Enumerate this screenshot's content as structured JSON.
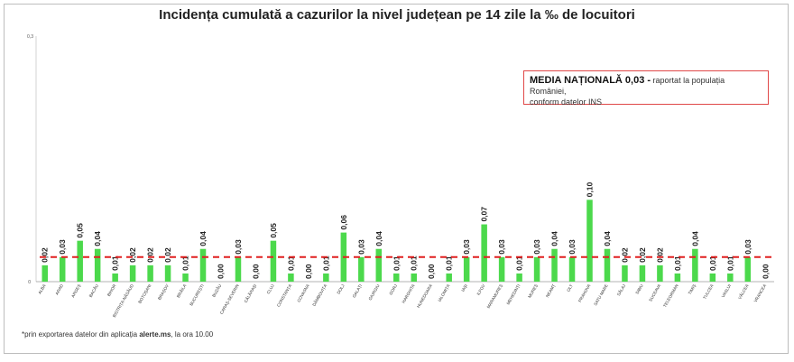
{
  "chart_data": {
    "type": "bar",
    "title": "Incidența cumulată a cazurilor la nivel județean pe 14 zile la ‰ de locuitori",
    "ylim": [
      0,
      0.3
    ],
    "y_ticks": [
      "0",
      "0,3"
    ],
    "grid": false,
    "reference_line": {
      "value": 0.03,
      "color": "#e02020",
      "style": "dashed"
    },
    "bar_color": "#4cd94c",
    "categories": [
      "ALBA",
      "ARAD",
      "ARGEȘ",
      "BACĂU",
      "BIHOR",
      "BISTRIȚA-NĂSĂUD",
      "BOTOȘANI",
      "BRAȘOV",
      "BRĂILA",
      "BUCUREȘTI",
      "BUZĂU",
      "CARAȘ-SEVERIN",
      "CĂLĂRAȘI",
      "CLUJ",
      "CONSTANȚA",
      "COVASNA",
      "DÂMBOVIȚA",
      "DOLJ",
      "GALAȚI",
      "GIURGIU",
      "GORJ",
      "HARGHITA",
      "HUNEDOARA",
      "IALOMIȚA",
      "IAȘI",
      "ILFOV",
      "MARAMUREȘ",
      "MEHEDINȚI",
      "MUREȘ",
      "NEAMȚ",
      "OLT",
      "PRAHOVA",
      "SATU MARE",
      "SĂLAJ",
      "SIBIU",
      "SUCEAVA",
      "TELEORMAN",
      "TIMIȘ",
      "TULCEA",
      "VASLUI",
      "VÂLCEA",
      "VRANCEA"
    ],
    "values": [
      0.02,
      0.03,
      0.05,
      0.04,
      0.01,
      0.02,
      0.02,
      0.02,
      0.01,
      0.04,
      0.0,
      0.03,
      0.0,
      0.05,
      0.01,
      0.0,
      0.01,
      0.06,
      0.03,
      0.04,
      0.01,
      0.01,
      0.0,
      0.01,
      0.03,
      0.07,
      0.03,
      0.01,
      0.03,
      0.04,
      0.03,
      0.1,
      0.04,
      0.02,
      0.02,
      0.02,
      0.01,
      0.04,
      0.01,
      0.01,
      0.03,
      0.0
    ],
    "labels": [
      "0,02",
      "0,03",
      "0,05",
      "0,04",
      "0,01",
      "0,02",
      "0,02",
      "0,02",
      "0,01",
      "0,04",
      "0,00",
      "0,03",
      "0,00",
      "0,05",
      "0,01",
      "0,00",
      "0,01",
      "0,06",
      "0,03",
      "0,04",
      "0,01",
      "0,01",
      "0,00",
      "0,01",
      "0,03",
      "0,07",
      "0,03",
      "0,01",
      "0,03",
      "0,04",
      "0,03",
      "0,10",
      "0,04",
      "0,02",
      "0,02",
      "0,02",
      "0,01",
      "0,04",
      "0,01",
      "0,01",
      "0,03",
      "0,00"
    ]
  },
  "callout": {
    "bold": "MEDIA NAȚIONALĂ  0,03 -",
    "rest_line1": " raportat la populația României,",
    "line2": "conform datelor INS"
  },
  "footnote": {
    "pre": "*prin exportarea datelor din aplicația ",
    "bold": "alerte.ms",
    "post": ", la ora 10.00"
  }
}
